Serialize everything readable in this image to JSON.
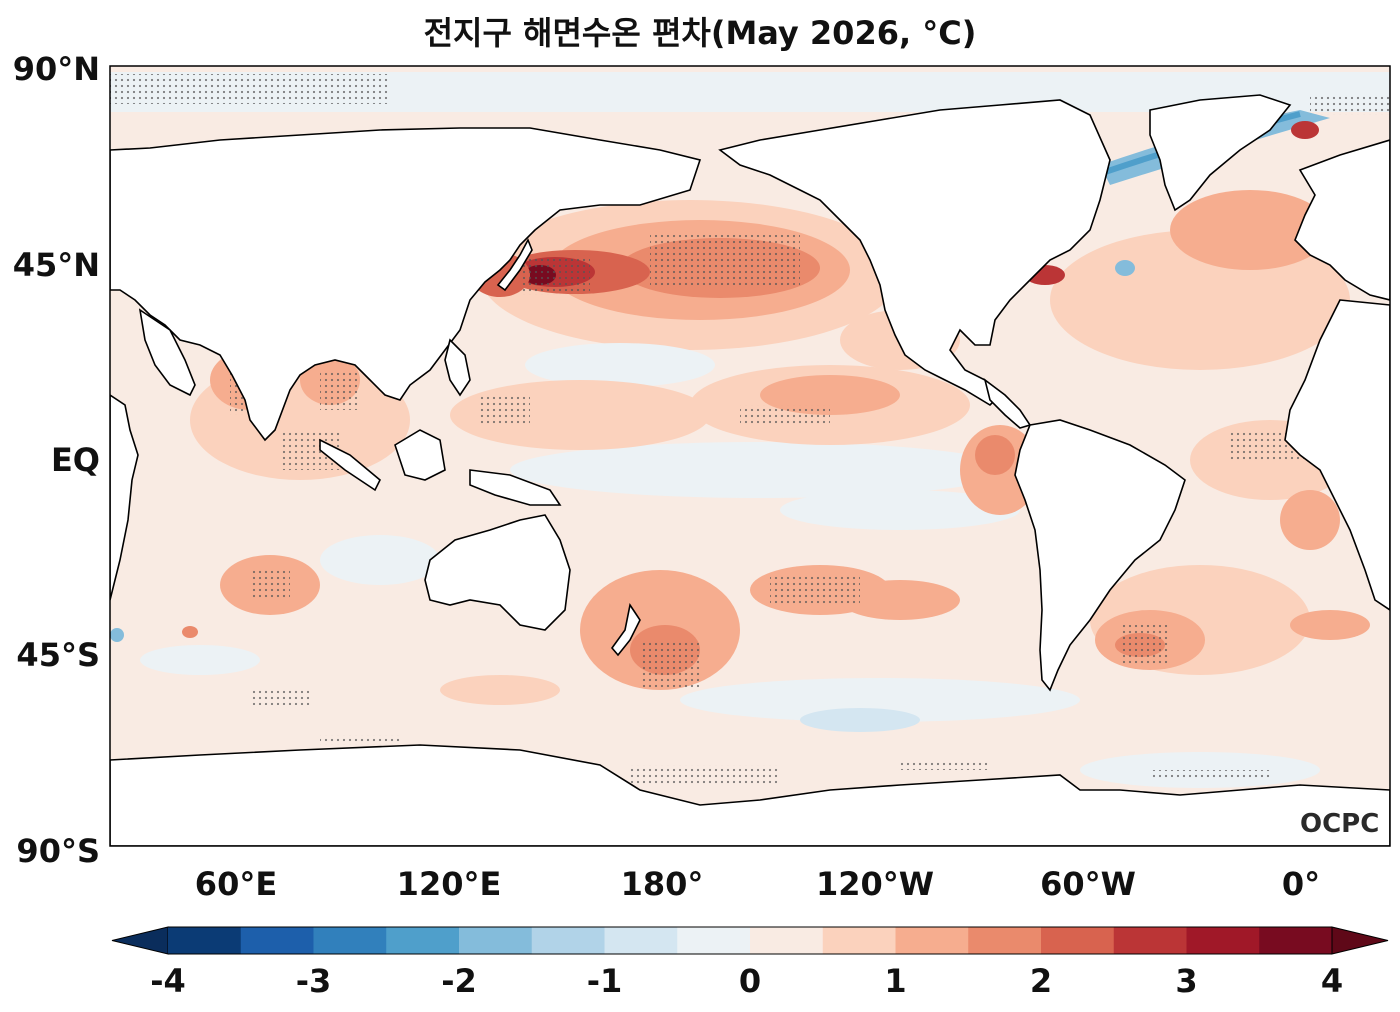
{
  "title": "전지구 해면수온 편차(May 2026, °C)",
  "lat_labels": [
    "90°N",
    "45°N",
    "EQ",
    "45°S",
    "90°S"
  ],
  "lon_labels": [
    "60°E",
    "120°E",
    "180°",
    "120°W",
    "60°W",
    "0°"
  ],
  "logo_text": "OCPC",
  "colorbar": {
    "ticks": [
      "-4",
      "-3",
      "-2",
      "-1",
      "0",
      "1",
      "2",
      "3",
      "4"
    ],
    "colors": [
      "#0b3b75",
      "#1d5fab",
      "#3180bc",
      "#4f9fcb",
      "#84bcdb",
      "#b1d3e8",
      "#d4e6f1",
      "#ecf2f5",
      "#f9ebe3",
      "#fbd2bd",
      "#f6ad8f",
      "#ea8a6c",
      "#d8634f",
      "#bb3536",
      "#a01828",
      "#780b20"
    ],
    "extend_low": "#0a2d5c",
    "extend_high": "#5f0818"
  },
  "map_colors": {
    "ocean_base": "#f9ebe3",
    "land": "#ffffff"
  },
  "regions": [
    {
      "name": "kuroshio-extension",
      "anomaly": 4
    },
    {
      "name": "north-pacific-warm-band",
      "anomaly": 2.5
    },
    {
      "name": "northwest-atlantic-gulf-stream",
      "anomaly": 3
    },
    {
      "name": "southwest-pacific-new-zealand",
      "anomaly": 2
    },
    {
      "name": "south-atlantic",
      "anomaly": 2
    },
    {
      "name": "equatorial-pacific",
      "anomaly": 0
    },
    {
      "name": "southern-ocean-cool",
      "anomaly": -0.5
    },
    {
      "name": "greenland-sea-cool",
      "anomaly": -2
    }
  ]
}
